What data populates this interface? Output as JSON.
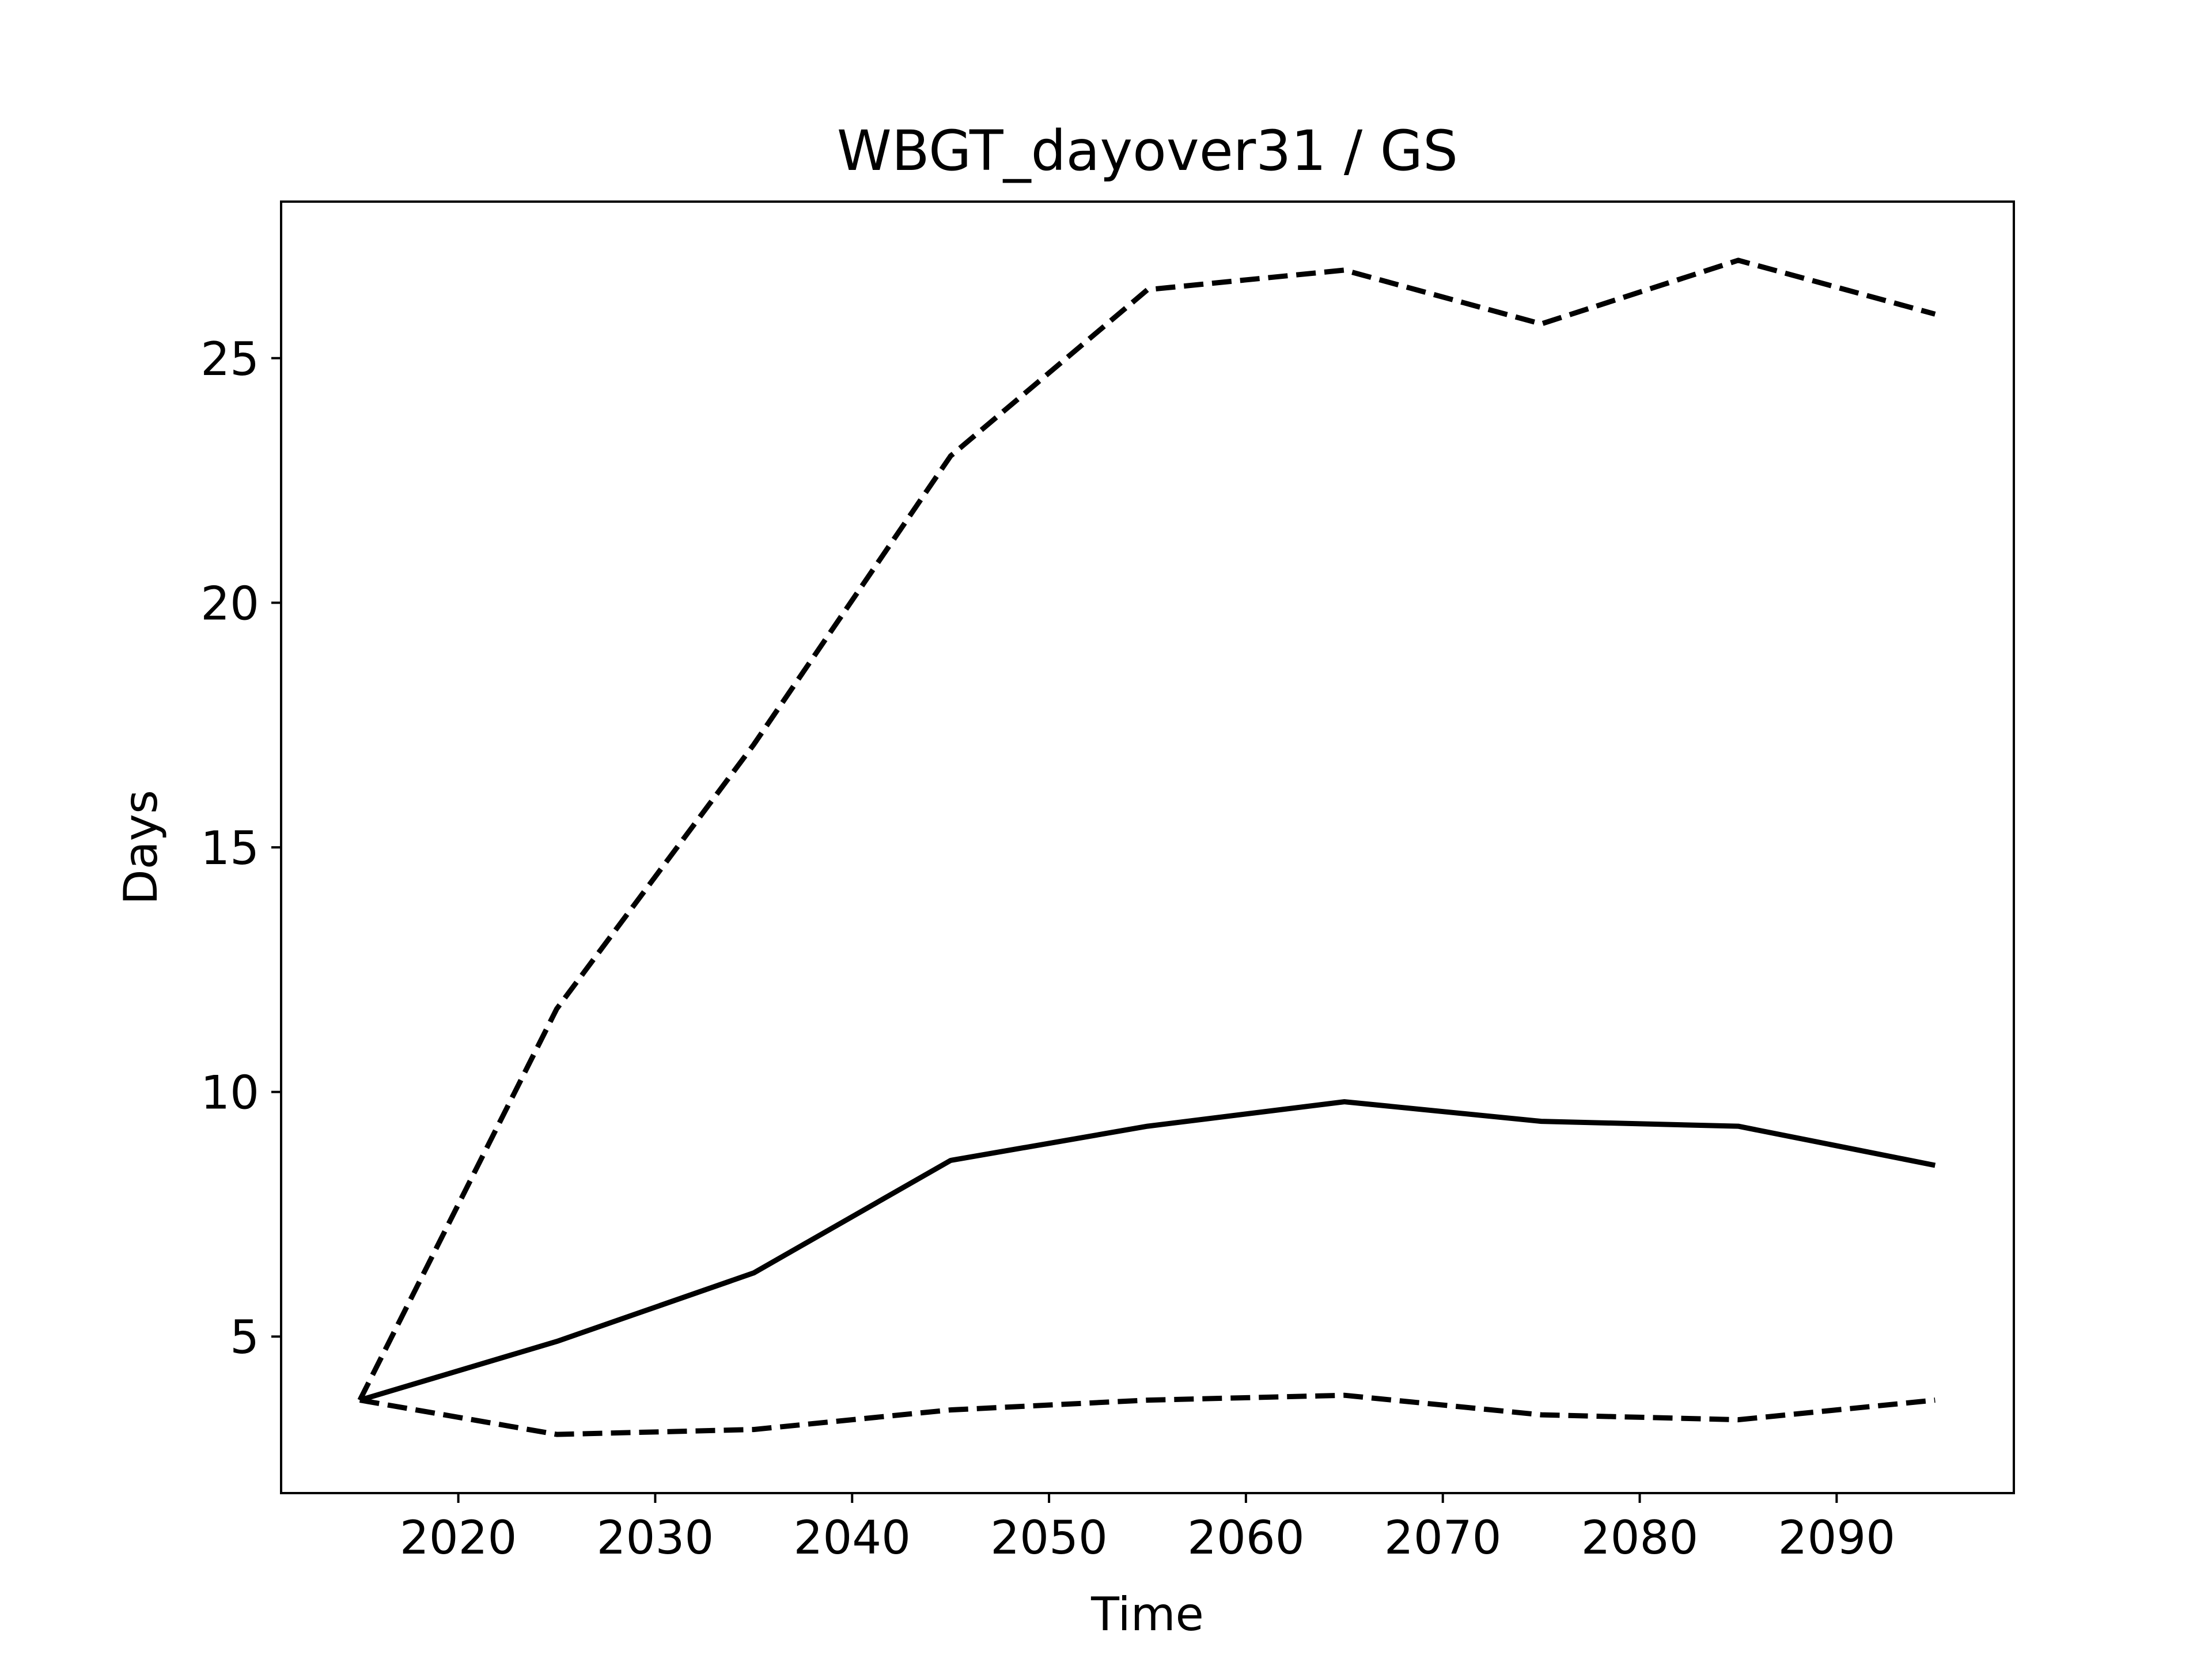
{
  "chart_data": {
    "type": "line",
    "title": "WBGT_dayover31 / GS",
    "xlabel": "Time",
    "ylabel": "Days",
    "xlim": [
      2011,
      2099
    ],
    "ylim": [
      1.8,
      28.2
    ],
    "xticks": [
      2020,
      2030,
      2040,
      2050,
      2060,
      2070,
      2080,
      2090
    ],
    "yticks": [
      5,
      10,
      15,
      20,
      25
    ],
    "grid": false,
    "x": [
      2015,
      2025,
      2035,
      2045,
      2055,
      2065,
      2075,
      2085,
      2095
    ],
    "series": [
      {
        "style": "solid",
        "color": "#000000",
        "values": [
          3.7,
          4.9,
          6.3,
          8.6,
          9.3,
          9.8,
          9.4,
          9.3,
          8.5
        ]
      },
      {
        "style": "dashed",
        "color": "#000000",
        "values": [
          3.7,
          11.7,
          17.1,
          23.0,
          26.4,
          26.8,
          25.7,
          27.0,
          25.9
        ]
      },
      {
        "style": "dashed",
        "color": "#000000",
        "values": [
          3.7,
          3.0,
          3.1,
          3.5,
          3.7,
          3.8,
          3.4,
          3.3,
          3.7
        ]
      }
    ]
  }
}
